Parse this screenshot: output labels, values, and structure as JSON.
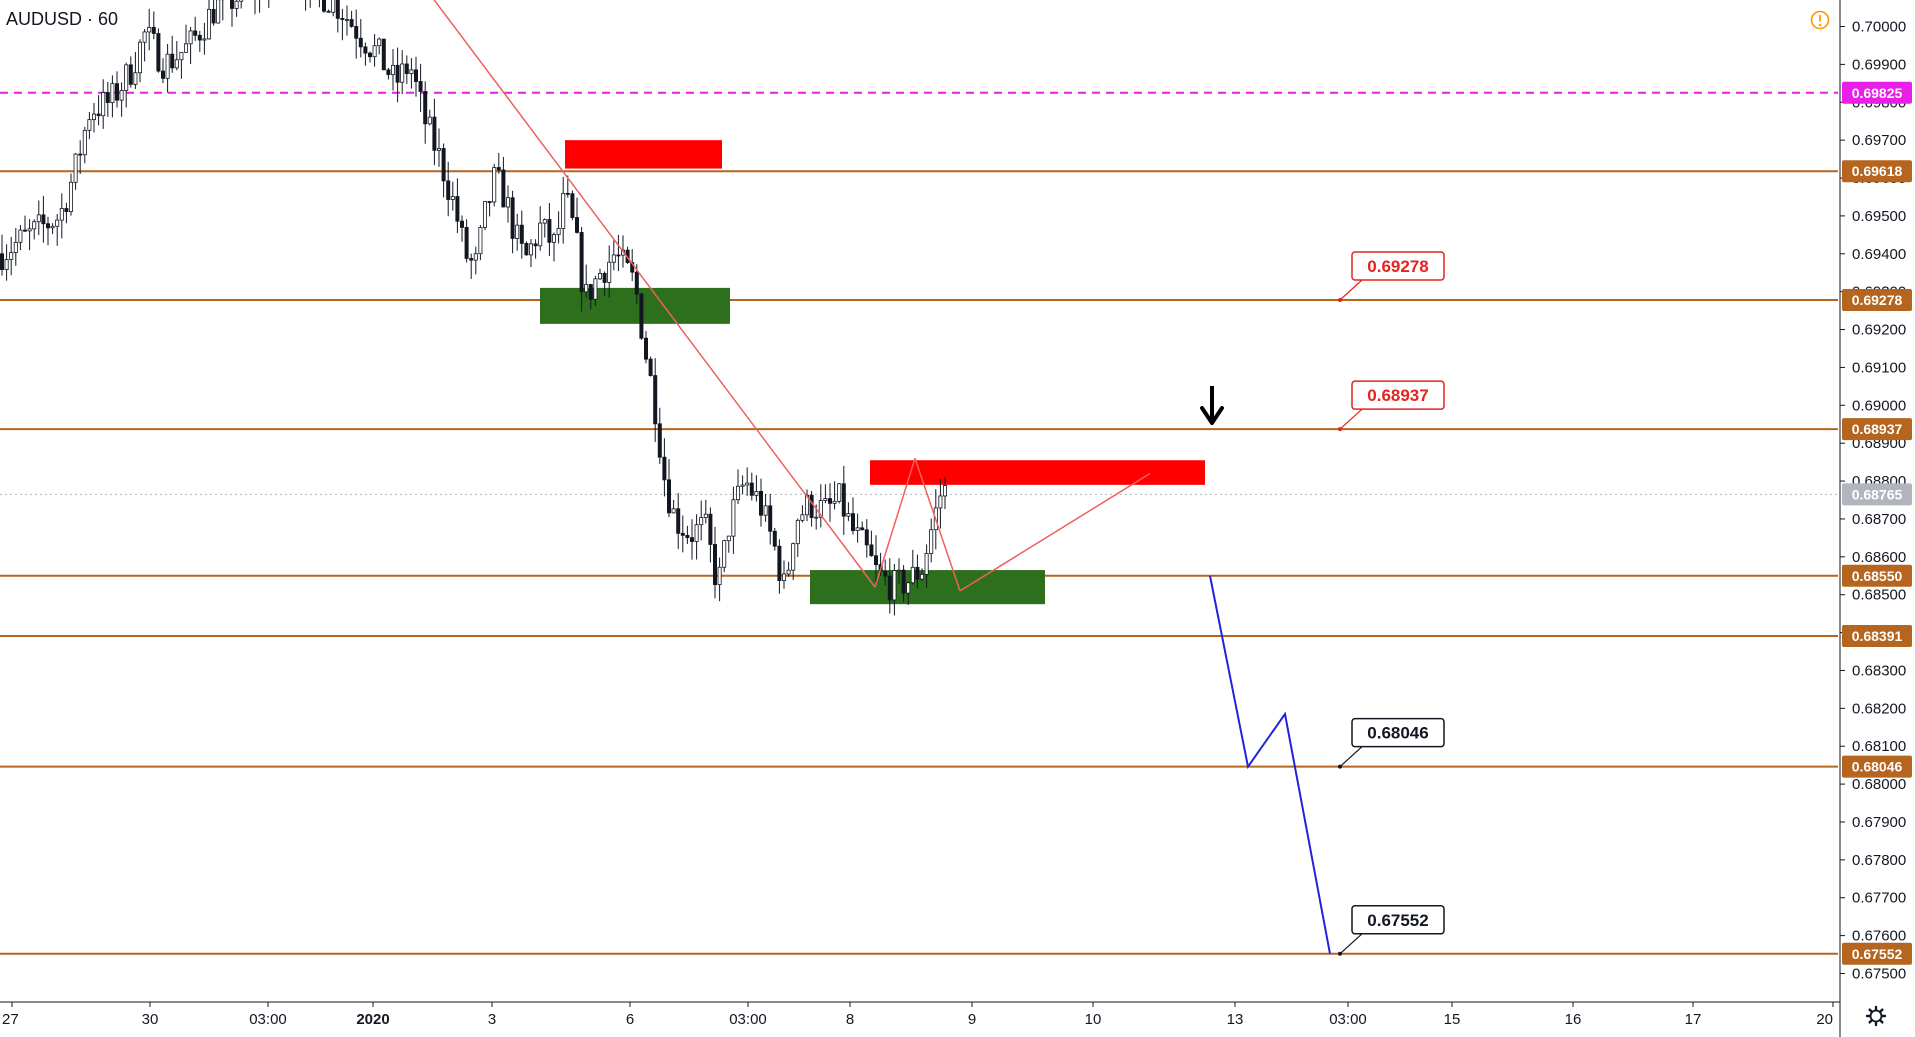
{
  "chart_data": {
    "type": "candlestick",
    "title": "AUDUSD · 60",
    "ylim": [
      0.6743,
      0.7007
    ],
    "x_tick_labels": [
      "27",
      "30",
      "03:00",
      "2020",
      "3",
      "6",
      "03:00",
      "8",
      "9",
      "10",
      "13",
      "03:00",
      "15",
      "16",
      "17",
      "20"
    ],
    "bold_x_labels": [
      "2020"
    ],
    "y_tick_labels": [
      "0.70000",
      "0.69900",
      "0.69800",
      "0.69700",
      "0.69600",
      "0.69500",
      "0.69400",
      "0.69300",
      "0.69200",
      "0.69100",
      "0.69000",
      "0.68900",
      "0.68800",
      "0.68700",
      "0.68600",
      "0.68500",
      "0.68400",
      "0.68300",
      "0.68200",
      "0.68100",
      "0.68000",
      "0.67900",
      "0.67800",
      "0.67700",
      "0.67600",
      "0.67500"
    ],
    "price_tags": [
      {
        "label": "0.69825",
        "value": 0.69825,
        "color": "#e91ee9",
        "style": "dashed"
      },
      {
        "label": "0.69618",
        "value": 0.69618,
        "color": "#b5651d",
        "style": "solid"
      },
      {
        "label": "0.69278",
        "value": 0.69278,
        "color": "#b5651d",
        "style": "solid"
      },
      {
        "label": "0.68937",
        "value": 0.68937,
        "color": "#b5651d",
        "style": "solid"
      },
      {
        "label": "0.68765",
        "value": 0.68765,
        "color": "#b2b5be",
        "style": "dotted"
      },
      {
        "label": "0.68550",
        "value": 0.6855,
        "color": "#b5651d",
        "style": "solid"
      },
      {
        "label": "0.68391",
        "value": 0.68391,
        "color": "#b5651d",
        "style": "solid"
      },
      {
        "label": "0.68046",
        "value": 0.68046,
        "color": "#b5651d",
        "style": "solid"
      },
      {
        "label": "0.67552",
        "value": 0.67552,
        "color": "#b5651d",
        "style": "solid"
      }
    ],
    "callouts": [
      {
        "label": "0.69278",
        "value": 0.69278,
        "color": "#e5231f"
      },
      {
        "label": "0.68937",
        "value": 0.68937,
        "color": "#e5231f"
      },
      {
        "label": "0.68046",
        "value": 0.68046,
        "color": "#131722"
      },
      {
        "label": "0.67552",
        "value": 0.67552,
        "color": "#131722"
      }
    ],
    "zones": [
      {
        "kind": "supply",
        "color": "#ff0000",
        "top": 0.697,
        "bottom": 0.69625
      },
      {
        "kind": "demand",
        "color": "#2e6f1d",
        "top": 0.6931,
        "bottom": 0.69215
      },
      {
        "kind": "supply",
        "color": "#ff0000",
        "top": 0.68855,
        "bottom": 0.6879
      },
      {
        "kind": "demand",
        "color": "#2e6f1d",
        "top": 0.68565,
        "bottom": 0.68475
      }
    ],
    "projection": {
      "color": "#2222dd",
      "values": [
        0.6855,
        0.68046,
        0.68185,
        0.67552
      ]
    },
    "trend_lines": {
      "color": "#f06060"
    },
    "candle_path": [
      [
        0,
        0.694
      ],
      [
        30,
        0.6945
      ],
      [
        60,
        0.695
      ],
      [
        75,
        0.6962
      ],
      [
        90,
        0.6978
      ],
      [
        110,
        0.698
      ],
      [
        130,
        0.6988
      ],
      [
        145,
        0.6998
      ],
      [
        165,
        0.699
      ],
      [
        190,
        0.6995
      ],
      [
        215,
        0.7005
      ],
      [
        240,
        0.7008
      ],
      [
        265,
        0.7012
      ],
      [
        285,
        0.7018
      ],
      [
        315,
        0.701
      ],
      [
        340,
        0.7005
      ],
      [
        360,
        0.6998
      ],
      [
        380,
        0.6992
      ],
      [
        395,
        0.6985
      ],
      [
        410,
        0.699
      ],
      [
        425,
        0.6975
      ],
      [
        440,
        0.6965
      ],
      [
        455,
        0.6952
      ],
      [
        465,
        0.694
      ],
      [
        475,
        0.6936
      ],
      [
        485,
        0.695
      ],
      [
        495,
        0.696
      ],
      [
        505,
        0.6955
      ],
      [
        515,
        0.6945
      ],
      [
        525,
        0.6938
      ],
      [
        540,
        0.6947
      ],
      [
        555,
        0.6942
      ],
      [
        565,
        0.6955
      ],
      [
        575,
        0.6945
      ],
      [
        585,
        0.6928
      ],
      [
        600,
        0.6935
      ],
      [
        615,
        0.694
      ],
      [
        625,
        0.6936
      ],
      [
        635,
        0.6932
      ],
      [
        645,
        0.6915
      ],
      [
        655,
        0.69
      ],
      [
        665,
        0.688
      ],
      [
        675,
        0.687
      ],
      [
        690,
        0.6866
      ],
      [
        705,
        0.6868
      ],
      [
        718,
        0.6852
      ],
      [
        730,
        0.687
      ],
      [
        745,
        0.688
      ],
      [
        760,
        0.6874
      ],
      [
        775,
        0.6862
      ],
      [
        785,
        0.6851
      ],
      [
        795,
        0.687
      ],
      [
        810,
        0.6874
      ],
      [
        825,
        0.6872
      ],
      [
        840,
        0.6875
      ],
      [
        852,
        0.6867
      ],
      [
        865,
        0.6862
      ],
      [
        878,
        0.6855
      ],
      [
        895,
        0.6852
      ],
      [
        910,
        0.6854
      ],
      [
        922,
        0.6857
      ],
      [
        932,
        0.6868
      ],
      [
        942,
        0.6878
      ],
      [
        948,
        0.6877
      ]
    ],
    "candle_seed": 7
  },
  "colors": {
    "level_line": "#b5651d",
    "resistance_dashed": "#e91ee9",
    "candle": "#131722",
    "warning_icon": "#ff9800",
    "settings_icon": "#131722",
    "arrow": "#000000"
  },
  "icons": {
    "warning": "warning-circle-icon",
    "settings": "gear-icon",
    "arrow": "down-arrow-icon"
  }
}
